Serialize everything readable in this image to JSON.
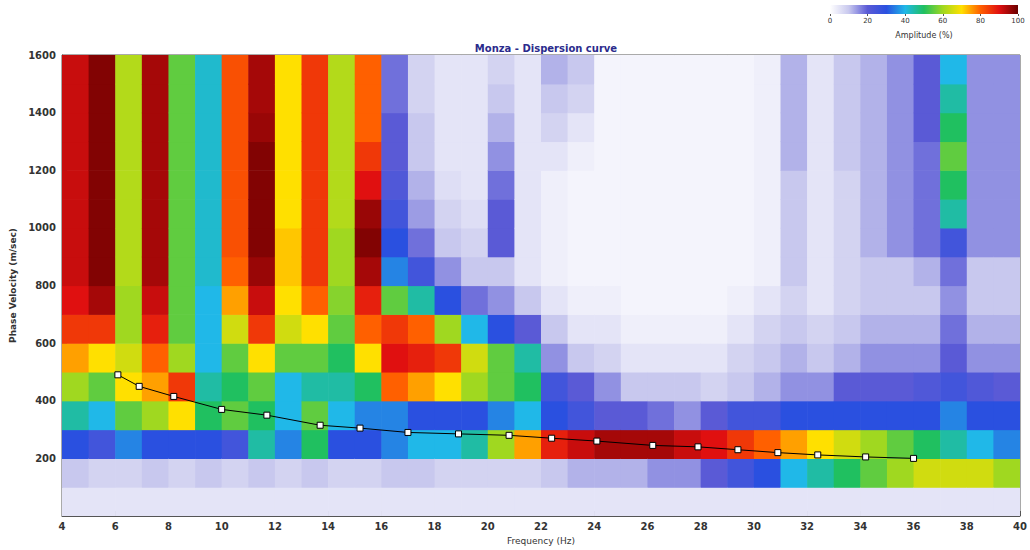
{
  "chart_data": {
    "type": "heatmap",
    "title": "Monza - Dispersion curve",
    "x_label": "Frequency (Hz)",
    "y_label": "Phase Velocity (m/sec)",
    "xlim": [
      4,
      40
    ],
    "xticks": [
      4,
      6,
      8,
      10,
      12,
      14,
      16,
      18,
      20,
      22,
      24,
      26,
      28,
      30,
      32,
      34,
      36,
      38,
      40
    ],
    "ylim": [
      0,
      1600
    ],
    "yticks": [
      200,
      400,
      600,
      800,
      1000,
      1200,
      1400,
      1600
    ],
    "grid": false,
    "cells": {
      "x": [
        4.5,
        5.5,
        6.5,
        7.5,
        8.5,
        9.5,
        10.5,
        11.5,
        12.5,
        13.5,
        14.5,
        15.5,
        16.5,
        17.5,
        18.5,
        19.5,
        20.5,
        21.5,
        22.5,
        23.5,
        24.5,
        25.5,
        26.5,
        27.5,
        28.5,
        29.5,
        30.5,
        31.5,
        32.5,
        33.5,
        34.5,
        35.5,
        36.5,
        37.5,
        38.5,
        39.5
      ],
      "y": [
        50,
        150,
        250,
        350,
        450,
        550,
        650,
        750,
        850,
        950,
        1050,
        1150,
        1250,
        1350,
        1450,
        1550
      ],
      "values": [
        [
          5,
          10,
          30,
          45,
          60,
          75,
          85,
          90,
          92,
          92,
          92,
          92,
          92,
          92,
          92,
          92
        ],
        [
          5,
          8,
          25,
          40,
          55,
          70,
          85,
          95,
          98,
          98,
          98,
          98,
          98,
          98,
          98,
          98
        ],
        [
          5,
          8,
          35,
          55,
          70,
          65,
          60,
          60,
          62,
          62,
          62,
          62,
          62,
          62,
          62,
          62
        ],
        [
          5,
          10,
          30,
          60,
          75,
          80,
          88,
          92,
          95,
          95,
          95,
          95,
          95,
          95,
          95,
          95
        ],
        [
          5,
          8,
          30,
          70,
          85,
          60,
          55,
          55,
          55,
          55,
          55,
          55,
          55,
          55,
          55,
          55
        ],
        [
          5,
          10,
          30,
          50,
          45,
          40,
          40,
          40,
          42,
          42,
          42,
          42,
          42,
          42,
          42,
          42
        ],
        [
          5,
          8,
          25,
          55,
          50,
          55,
          65,
          75,
          80,
          82,
          82,
          82,
          82,
          82,
          82,
          82
        ],
        [
          5,
          10,
          45,
          50,
          55,
          70,
          85,
          92,
          96,
          98,
          98,
          98,
          98,
          96,
          95,
          95
        ],
        [
          5,
          8,
          35,
          40,
          40,
          55,
          65,
          70,
          72,
          72,
          70,
          70,
          70,
          70,
          70,
          70
        ],
        [
          5,
          10,
          50,
          55,
          45,
          55,
          70,
          80,
          85,
          85,
          85,
          85,
          85,
          85,
          85,
          85
        ],
        [
          5,
          8,
          30,
          40,
          45,
          50,
          55,
          58,
          60,
          60,
          62,
          62,
          62,
          62,
          62,
          62
        ],
        [
          5,
          8,
          30,
          35,
          50,
          70,
          80,
          88,
          95,
          98,
          96,
          90,
          85,
          80,
          80,
          80
        ],
        [
          5,
          10,
          35,
          35,
          80,
          90,
          85,
          55,
          35,
          30,
          25,
          22,
          20,
          20,
          18,
          18
        ],
        [
          5,
          10,
          40,
          30,
          75,
          88,
          80,
          45,
          25,
          18,
          14,
          12,
          10,
          10,
          8,
          8
        ],
        [
          5,
          8,
          40,
          30,
          70,
          85,
          60,
          30,
          15,
          10,
          8,
          6,
          5,
          5,
          5,
          5
        ],
        [
          5,
          8,
          45,
          30,
          60,
          65,
          40,
          18,
          10,
          8,
          6,
          5,
          5,
          5,
          5,
          5
        ],
        [
          5,
          8,
          60,
          35,
          55,
          55,
          30,
          15,
          10,
          20,
          20,
          18,
          15,
          12,
          10,
          8
        ],
        [
          5,
          8,
          75,
          40,
          50,
          45,
          20,
          10,
          5,
          5,
          5,
          5,
          5,
          5,
          5,
          5
        ],
        [
          5,
          10,
          88,
          30,
          25,
          15,
          10,
          5,
          3,
          3,
          3,
          3,
          5,
          8,
          10,
          12
        ],
        [
          5,
          12,
          92,
          25,
          20,
          10,
          5,
          3,
          2,
          2,
          2,
          2,
          3,
          5,
          8,
          10
        ],
        [
          5,
          12,
          95,
          20,
          15,
          8,
          5,
          3,
          2,
          2,
          2,
          2,
          2,
          2,
          2,
          2
        ],
        [
          5,
          12,
          95,
          20,
          10,
          5,
          3,
          2,
          2,
          2,
          2,
          2,
          2,
          2,
          2,
          2
        ],
        [
          5,
          15,
          95,
          18,
          10,
          5,
          3,
          2,
          2,
          2,
          2,
          2,
          2,
          2,
          2,
          2
        ],
        [
          5,
          15,
          92,
          15,
          10,
          5,
          3,
          2,
          2,
          2,
          2,
          2,
          2,
          2,
          2,
          2
        ],
        [
          5,
          20,
          90,
          20,
          8,
          5,
          3,
          2,
          2,
          2,
          2,
          2,
          2,
          2,
          2,
          2
        ],
        [
          5,
          25,
          85,
          25,
          10,
          8,
          5,
          3,
          2,
          2,
          2,
          2,
          2,
          2,
          2,
          2
        ],
        [
          5,
          30,
          80,
          25,
          12,
          10,
          8,
          5,
          3,
          3,
          3,
          3,
          3,
          3,
          3,
          3
        ],
        [
          5,
          40,
          75,
          30,
          15,
          12,
          10,
          8,
          10,
          10,
          10,
          10,
          12,
          12,
          12,
          12
        ],
        [
          5,
          45,
          70,
          30,
          15,
          10,
          8,
          5,
          5,
          5,
          5,
          5,
          5,
          5,
          5,
          5
        ],
        [
          5,
          50,
          65,
          30,
          20,
          12,
          10,
          8,
          8,
          8,
          8,
          8,
          10,
          10,
          10,
          10
        ],
        [
          5,
          55,
          60,
          30,
          20,
          15,
          12,
          10,
          10,
          12,
          12,
          12,
          12,
          12,
          12,
          12
        ],
        [
          5,
          60,
          55,
          30,
          20,
          15,
          12,
          10,
          10,
          15,
          15,
          15,
          15,
          15,
          15,
          15
        ],
        [
          5,
          65,
          50,
          30,
          22,
          15,
          12,
          10,
          12,
          18,
          18,
          18,
          18,
          20,
          20,
          20
        ],
        [
          5,
          65,
          45,
          35,
          25,
          20,
          18,
          15,
          18,
          25,
          45,
          50,
          55,
          50,
          45,
          40
        ],
        [
          5,
          65,
          40,
          30,
          22,
          15,
          12,
          10,
          10,
          15,
          15,
          15,
          15,
          15,
          15,
          15
        ],
        [
          5,
          60,
          35,
          30,
          20,
          15,
          12,
          10,
          10,
          15,
          15,
          15,
          15,
          15,
          15,
          15
        ]
      ]
    },
    "colorbar": {
      "label": "Amplitude (%)",
      "zlim": [
        0,
        100
      ],
      "zticks": [
        0,
        20,
        40,
        60,
        80,
        100
      ]
    },
    "series": [
      {
        "type": "line",
        "color": "#000000",
        "marker": "square",
        "line_style": "solid",
        "x": [
          6.1,
          6.9,
          8.2,
          10.0,
          11.7,
          13.7,
          15.2,
          17.0,
          18.9,
          20.8,
          22.4,
          24.1,
          26.2,
          27.9,
          29.4,
          30.9,
          32.4,
          34.2,
          36.0
        ],
        "values": [
          490,
          450,
          415,
          370,
          350,
          315,
          305,
          290,
          285,
          280,
          270,
          260,
          245,
          240,
          230,
          220,
          212,
          205,
          200
        ]
      }
    ]
  }
}
